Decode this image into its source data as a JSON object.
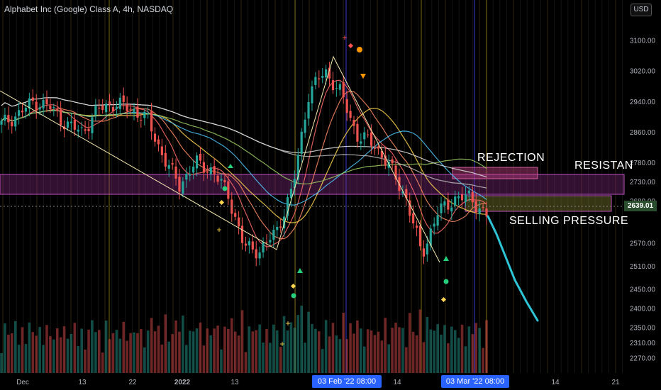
{
  "header": {
    "title": "Alphabet Inc (Google) Class A, 4h, NASDAQ",
    "currency": "USD"
  },
  "annotations": {
    "rejection": "REJECTION",
    "resistance": "RESISTAN",
    "selling_pressure": "SELLING PRESSURE"
  },
  "price_badge": "2639.01",
  "time_badges": {
    "first": "03 Feb '22   08:00",
    "second": "03 Mar '22   08:00"
  },
  "colors": {
    "up": "#26a69a",
    "down": "#ef5350",
    "resistance_zone": "#8e2d8e",
    "selling_zone": "#6b6b2a",
    "projection": "#2ec4d6",
    "price_tag": "#2a4d2e"
  },
  "chart_data": {
    "type": "candlestick",
    "title": "Alphabet Inc (Google) Class A, 4h, NASDAQ",
    "ylim": [
      2230,
      3190
    ],
    "y_ticks": [
      3100,
      3020,
      2940,
      2860,
      2780,
      2730,
      2680,
      2570,
      2510,
      2450,
      2400,
      2350,
      2310,
      2270
    ],
    "x_ticks": [
      "Dec",
      "13",
      "22",
      "2022",
      "13",
      "14",
      "14",
      "21"
    ],
    "last_price": 2639.01,
    "resistance_zone": [
      2675,
      2730
    ],
    "rejection_zone": [
      2715,
      2740
    ],
    "selling_zone": [
      2625,
      2665
    ],
    "close_path": [
      {
        "date": "2021-12-01",
        "close": 2880
      },
      {
        "date": "2021-12-06",
        "close": 2905
      },
      {
        "date": "2021-12-09",
        "close": 2940
      },
      {
        "date": "2021-12-13",
        "close": 2925
      },
      {
        "date": "2021-12-16",
        "close": 2880
      },
      {
        "date": "2021-12-20",
        "close": 2860
      },
      {
        "date": "2021-12-22",
        "close": 2920
      },
      {
        "date": "2021-12-28",
        "close": 2935
      },
      {
        "date": "2021-12-31",
        "close": 2920
      },
      {
        "date": "2022-01-04",
        "close": 2895
      },
      {
        "date": "2022-01-06",
        "close": 2795
      },
      {
        "date": "2022-01-10",
        "close": 2720
      },
      {
        "date": "2022-01-13",
        "close": 2780
      },
      {
        "date": "2022-01-18",
        "close": 2760
      },
      {
        "date": "2022-01-21",
        "close": 2700
      },
      {
        "date": "2022-01-24",
        "close": 2560
      },
      {
        "date": "2022-01-26",
        "close": 2550
      },
      {
        "date": "2022-01-28",
        "close": 2600
      },
      {
        "date": "2022-01-31",
        "close": 2710
      },
      {
        "date": "2022-02-02",
        "close": 2960
      },
      {
        "date": "2022-02-03",
        "close": 3020
      },
      {
        "date": "2022-02-07",
        "close": 2960
      },
      {
        "date": "2022-02-10",
        "close": 2850
      },
      {
        "date": "2022-02-14",
        "close": 2830
      },
      {
        "date": "2022-02-17",
        "close": 2770
      },
      {
        "date": "2022-02-22",
        "close": 2690
      },
      {
        "date": "2022-02-24",
        "close": 2540
      },
      {
        "date": "2022-02-28",
        "close": 2650
      },
      {
        "date": "2022-03-02",
        "close": 2685
      },
      {
        "date": "2022-03-03",
        "close": 2690
      },
      {
        "date": "2022-03-04",
        "close": 2639
      }
    ]
  }
}
